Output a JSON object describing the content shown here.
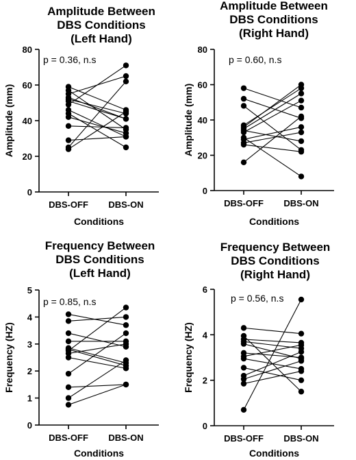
{
  "chart_data": [
    {
      "type": "scatter",
      "title": [
        "Amplitude Between",
        "DBS Conditions",
        "(Left Hand)"
      ],
      "ylabel": "Amplitude (mm)",
      "xlabel": "Conditions",
      "categories": [
        "DBS-OFF",
        "DBS-ON"
      ],
      "annotation": "p = 0.36, n.s",
      "ylim": [
        0,
        80
      ],
      "yticks": [
        0,
        20,
        40,
        60,
        80
      ],
      "pairs": [
        [
          59,
          46
        ],
        [
          57,
          35
        ],
        [
          55,
          65
        ],
        [
          53,
          41
        ],
        [
          52,
          44
        ],
        [
          51,
          41
        ],
        [
          49,
          71
        ],
        [
          46,
          31
        ],
        [
          44,
          25
        ],
        [
          42,
          33
        ],
        [
          37,
          36
        ],
        [
          29,
          31
        ],
        [
          25,
          62
        ],
        [
          24,
          45
        ]
      ]
    },
    {
      "type": "scatter",
      "title": [
        "Amplitude Between",
        "DBS Conditions",
        "(Right Hand)"
      ],
      "ylabel": "Amplitude (mm)",
      "xlabel": "Conditions",
      "categories": [
        "DBS-OFF",
        "DBS-ON"
      ],
      "annotation": "p = 0.60, n.s",
      "ylim": [
        0,
        80
      ],
      "yticks": [
        0,
        20,
        40,
        60,
        80
      ],
      "pairs": [
        [
          58,
          47
        ],
        [
          52,
          41
        ],
        [
          48,
          23
        ],
        [
          37,
          58
        ],
        [
          36,
          60
        ],
        [
          35,
          55
        ],
        [
          34,
          28
        ],
        [
          33,
          51
        ],
        [
          30,
          8
        ],
        [
          29,
          36
        ],
        [
          27,
          33
        ],
        [
          26,
          22
        ],
        [
          16,
          42
        ]
      ]
    },
    {
      "type": "scatter",
      "title": [
        "Frequency Between",
        "DBS Conditions",
        "(Left Hand)"
      ],
      "ylabel": "Frequency (HZ)",
      "xlabel": "Conditions",
      "categories": [
        "DBS-OFF",
        "DBS-ON"
      ],
      "annotation": "p = 0.85, n.s",
      "ylim": [
        0,
        5
      ],
      "yticks": [
        0,
        1,
        2,
        3,
        4,
        5
      ],
      "pairs": [
        [
          4.1,
          3.7
        ],
        [
          3.85,
          4.0
        ],
        [
          3.4,
          2.9
        ],
        [
          3.1,
          3.1
        ],
        [
          2.85,
          2.3
        ],
        [
          2.8,
          2.2
        ],
        [
          2.75,
          4.35
        ],
        [
          2.65,
          3.0
        ],
        [
          2.5,
          2.1
        ],
        [
          1.9,
          3.4
        ],
        [
          1.4,
          1.5
        ],
        [
          1.0,
          2.4
        ],
        [
          0.75,
          1.5
        ]
      ]
    },
    {
      "type": "scatter",
      "title": [
        "Frequency Between",
        "DBS Conditions",
        "(Right Hand)"
      ],
      "ylabel": "Frequency (HZ)",
      "xlabel": "Conditions",
      "categories": [
        "DBS-OFF",
        "DBS-ON"
      ],
      "annotation": "p = 0.56, n.s",
      "ylim": [
        0,
        6
      ],
      "yticks": [
        0,
        2,
        4,
        6
      ],
      "pairs": [
        [
          4.3,
          4.05
        ],
        [
          3.8,
          3.65
        ],
        [
          3.7,
          3.4
        ],
        [
          3.6,
          2.95
        ],
        [
          3.2,
          3.0
        ],
        [
          3.05,
          3.55
        ],
        [
          2.95,
          2.5
        ],
        [
          2.55,
          2.0
        ],
        [
          2.2,
          3.25
        ],
        [
          2.05,
          2.85
        ],
        [
          1.85,
          2.4
        ],
        [
          0.7,
          5.55
        ],
        [
          3.95,
          1.5
        ]
      ]
    }
  ]
}
